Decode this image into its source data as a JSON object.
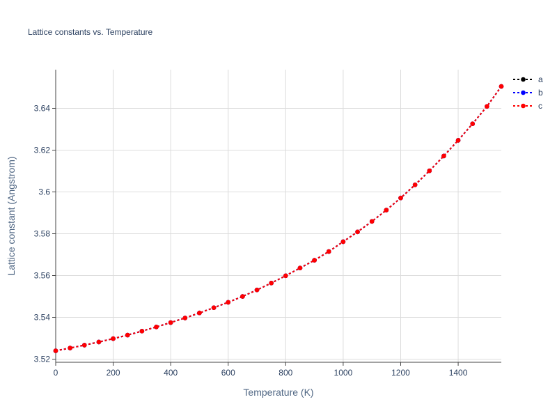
{
  "chart_data": {
    "type": "line",
    "title": "Lattice constants vs. Temperature",
    "xlabel": "Temperature (K)",
    "ylabel": "Lattice constant (Angstrom)",
    "xlim": [
      0,
      1550
    ],
    "ylim": [
      3.5185,
      3.6585
    ],
    "xticks": [
      0,
      200,
      400,
      600,
      800,
      1000,
      1200,
      1400
    ],
    "xtick_labels": [
      "0",
      "200",
      "400",
      "600",
      "800",
      "1000",
      "1200",
      "1400"
    ],
    "yticks": [
      3.52,
      3.54,
      3.56,
      3.58,
      3.6,
      3.62,
      3.64
    ],
    "ytick_labels": [
      "3.52",
      "3.54",
      "3.56",
      "3.58",
      "3.6",
      "3.62",
      "3.64"
    ],
    "grid": true,
    "legend_position": "top-right",
    "x": [
      0,
      50,
      100,
      150,
      200,
      250,
      300,
      350,
      400,
      450,
      500,
      550,
      600,
      650,
      700,
      750,
      800,
      850,
      900,
      950,
      1000,
      1050,
      1100,
      1150,
      1200,
      1250,
      1300,
      1350,
      1400,
      1450,
      1500,
      1550
    ],
    "series": [
      {
        "name": "a",
        "color": "#000000",
        "values": [
          3.524,
          3.5253,
          3.5267,
          3.5282,
          3.5298,
          3.5315,
          3.5334,
          3.5354,
          3.5375,
          3.5397,
          3.5421,
          3.5446,
          3.5472,
          3.55,
          3.5531,
          3.5564,
          3.5599,
          3.5636,
          3.5673,
          3.5715,
          3.5762,
          3.5809,
          3.5859,
          3.5913,
          3.5971,
          3.6034,
          3.6101,
          3.6172,
          3.6247,
          3.6326,
          3.6409,
          3.6505
        ]
      },
      {
        "name": "b",
        "color": "#0000ff",
        "values": [
          3.524,
          3.5253,
          3.5267,
          3.5282,
          3.5298,
          3.5315,
          3.5334,
          3.5354,
          3.5375,
          3.5397,
          3.5421,
          3.5446,
          3.5472,
          3.55,
          3.5531,
          3.5564,
          3.5599,
          3.5636,
          3.5673,
          3.5715,
          3.5762,
          3.5809,
          3.5859,
          3.5913,
          3.5971,
          3.6034,
          3.6101,
          3.6172,
          3.6247,
          3.6326,
          3.6409,
          3.6505
        ]
      },
      {
        "name": "c",
        "color": "#ff0000",
        "values": [
          3.524,
          3.5253,
          3.5267,
          3.5282,
          3.5298,
          3.5315,
          3.5334,
          3.5354,
          3.5375,
          3.5397,
          3.5421,
          3.5446,
          3.5472,
          3.55,
          3.5531,
          3.5564,
          3.5599,
          3.5636,
          3.5673,
          3.5715,
          3.5762,
          3.5809,
          3.5859,
          3.5913,
          3.5971,
          3.6034,
          3.6101,
          3.6172,
          3.6247,
          3.6326,
          3.6409,
          3.6505
        ]
      }
    ]
  }
}
